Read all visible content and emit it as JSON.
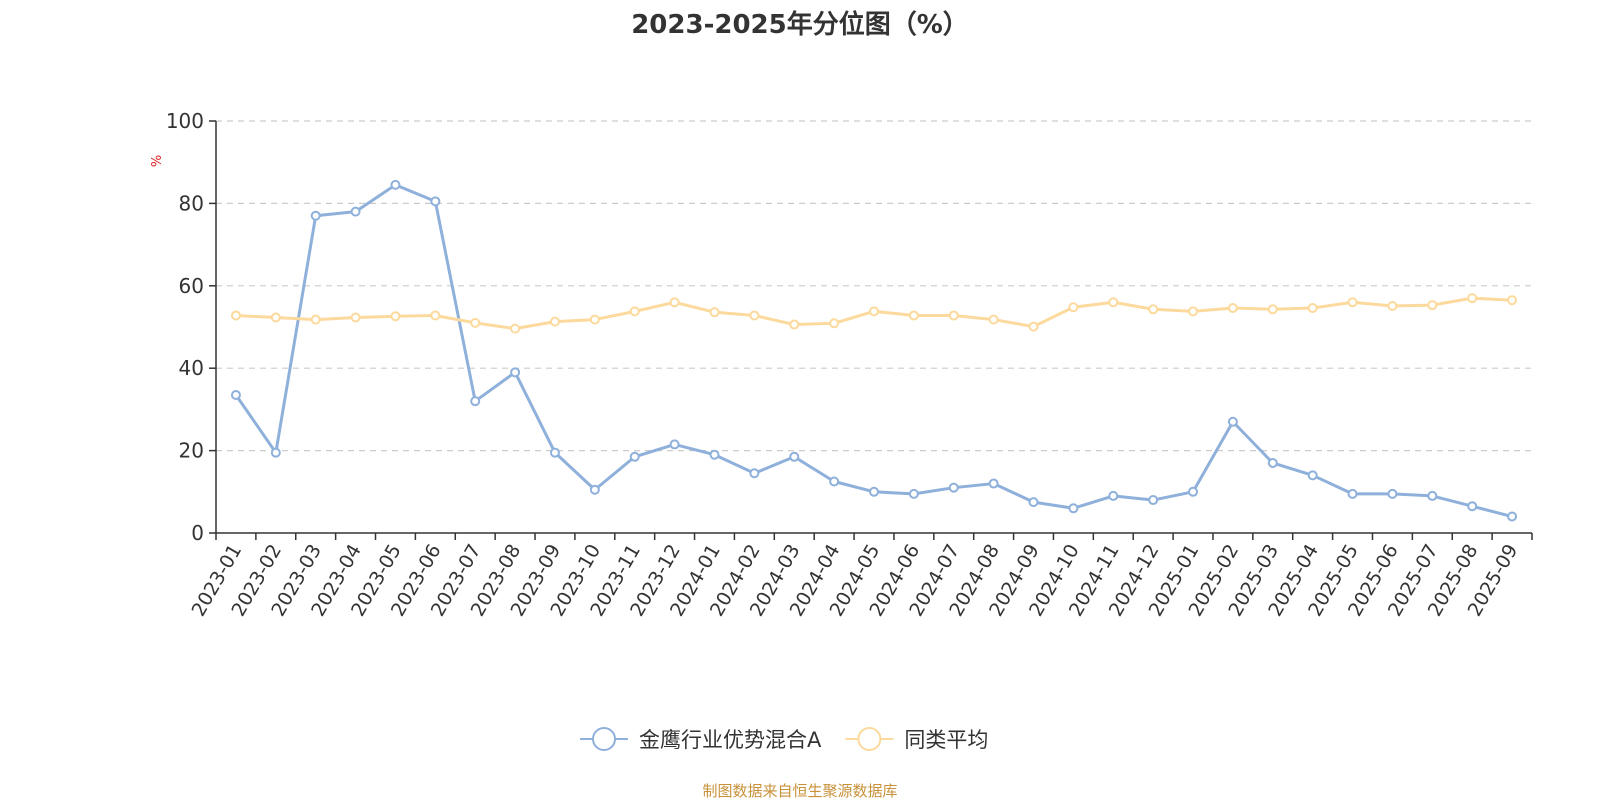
{
  "chart_data": {
    "type": "line",
    "title": "2023-2025年分位图（%）",
    "ylabel": "%",
    "ylim": [
      0,
      100
    ],
    "yticks": [
      "0",
      "20",
      "40",
      "60",
      "80",
      "100"
    ],
    "grid": "horizontal dashed",
    "legend_position": "bottom",
    "categories": [
      "2023-01",
      "2023-02",
      "2023-03",
      "2023-04",
      "2023-05",
      "2023-06",
      "2023-07",
      "2023-08",
      "2023-09",
      "2023-10",
      "2023-11",
      "2023-12",
      "2024-01",
      "2024-02",
      "2024-03",
      "2024-04",
      "2024-05",
      "2024-06",
      "2024-07",
      "2024-08",
      "2024-09",
      "2024-10",
      "2024-11",
      "2024-12",
      "2025-01",
      "2025-02",
      "2025-03",
      "2025-04",
      "2025-05",
      "2025-06",
      "2025-07",
      "2025-08",
      "2025-09"
    ],
    "series": [
      {
        "name": "金鹰行业优势混合A",
        "color": "#8eb0db",
        "values": [
          33.5,
          19.5,
          77.0,
          78.0,
          84.5,
          80.5,
          32.0,
          39.0,
          19.5,
          10.5,
          18.5,
          21.5,
          19.0,
          14.5,
          18.5,
          12.5,
          10.0,
          9.5,
          11.0,
          12.0,
          7.5,
          6.0,
          9.0,
          8.0,
          10.0,
          27.0,
          17.0,
          14.0,
          9.5,
          9.5,
          9.0,
          6.5,
          4.0
        ]
      },
      {
        "name": "同类平均",
        "color": "#fcd99c",
        "values": [
          52.8,
          52.3,
          51.8,
          52.3,
          52.6,
          52.8,
          51.0,
          49.6,
          51.3,
          51.8,
          53.8,
          56.0,
          53.6,
          52.8,
          50.6,
          50.9,
          53.8,
          52.8,
          52.8,
          51.8,
          50.1,
          54.8,
          56.0,
          54.3,
          53.8,
          54.6,
          54.3,
          54.6,
          56.0,
          55.1,
          55.3,
          57.0,
          56.5
        ]
      }
    ]
  },
  "source": "制图数据来自恒生聚源数据库",
  "colors": {
    "axis": "#333333",
    "grid": "#cccccc",
    "unit_label": "#e02020",
    "source_text": "#c8913a"
  }
}
